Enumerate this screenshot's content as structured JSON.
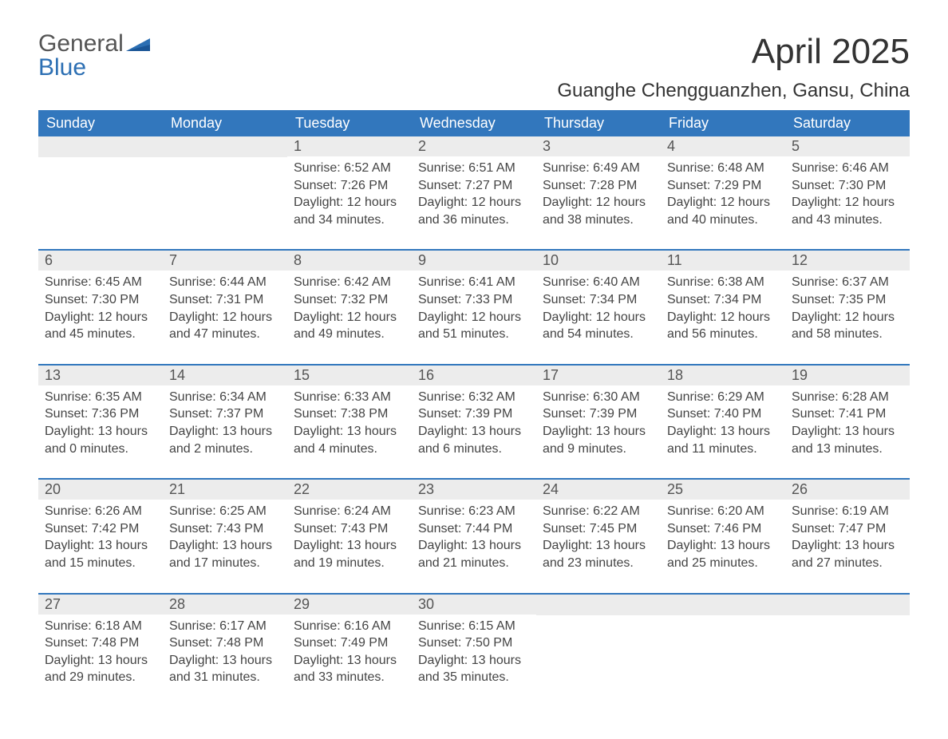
{
  "logo": {
    "part1": "General",
    "part2": "Blue"
  },
  "title": "April 2025",
  "location": "Guanghe Chengguanzhen, Gansu, China",
  "colors": {
    "header_bg": "#3277bd",
    "header_text": "#ffffff",
    "daynum_bg": "#ececec",
    "body_text": "#444444",
    "logo_blue": "#2c6fb3"
  },
  "day_headers": [
    "Sunday",
    "Monday",
    "Tuesday",
    "Wednesday",
    "Thursday",
    "Friday",
    "Saturday"
  ],
  "weeks": [
    [
      null,
      null,
      {
        "n": "1",
        "sunrise": "Sunrise: 6:52 AM",
        "sunset": "Sunset: 7:26 PM",
        "daylight": "Daylight: 12 hours and 34 minutes."
      },
      {
        "n": "2",
        "sunrise": "Sunrise: 6:51 AM",
        "sunset": "Sunset: 7:27 PM",
        "daylight": "Daylight: 12 hours and 36 minutes."
      },
      {
        "n": "3",
        "sunrise": "Sunrise: 6:49 AM",
        "sunset": "Sunset: 7:28 PM",
        "daylight": "Daylight: 12 hours and 38 minutes."
      },
      {
        "n": "4",
        "sunrise": "Sunrise: 6:48 AM",
        "sunset": "Sunset: 7:29 PM",
        "daylight": "Daylight: 12 hours and 40 minutes."
      },
      {
        "n": "5",
        "sunrise": "Sunrise: 6:46 AM",
        "sunset": "Sunset: 7:30 PM",
        "daylight": "Daylight: 12 hours and 43 minutes."
      }
    ],
    [
      {
        "n": "6",
        "sunrise": "Sunrise: 6:45 AM",
        "sunset": "Sunset: 7:30 PM",
        "daylight": "Daylight: 12 hours and 45 minutes."
      },
      {
        "n": "7",
        "sunrise": "Sunrise: 6:44 AM",
        "sunset": "Sunset: 7:31 PM",
        "daylight": "Daylight: 12 hours and 47 minutes."
      },
      {
        "n": "8",
        "sunrise": "Sunrise: 6:42 AM",
        "sunset": "Sunset: 7:32 PM",
        "daylight": "Daylight: 12 hours and 49 minutes."
      },
      {
        "n": "9",
        "sunrise": "Sunrise: 6:41 AM",
        "sunset": "Sunset: 7:33 PM",
        "daylight": "Daylight: 12 hours and 51 minutes."
      },
      {
        "n": "10",
        "sunrise": "Sunrise: 6:40 AM",
        "sunset": "Sunset: 7:34 PM",
        "daylight": "Daylight: 12 hours and 54 minutes."
      },
      {
        "n": "11",
        "sunrise": "Sunrise: 6:38 AM",
        "sunset": "Sunset: 7:34 PM",
        "daylight": "Daylight: 12 hours and 56 minutes."
      },
      {
        "n": "12",
        "sunrise": "Sunrise: 6:37 AM",
        "sunset": "Sunset: 7:35 PM",
        "daylight": "Daylight: 12 hours and 58 minutes."
      }
    ],
    [
      {
        "n": "13",
        "sunrise": "Sunrise: 6:35 AM",
        "sunset": "Sunset: 7:36 PM",
        "daylight": "Daylight: 13 hours and 0 minutes."
      },
      {
        "n": "14",
        "sunrise": "Sunrise: 6:34 AM",
        "sunset": "Sunset: 7:37 PM",
        "daylight": "Daylight: 13 hours and 2 minutes."
      },
      {
        "n": "15",
        "sunrise": "Sunrise: 6:33 AM",
        "sunset": "Sunset: 7:38 PM",
        "daylight": "Daylight: 13 hours and 4 minutes."
      },
      {
        "n": "16",
        "sunrise": "Sunrise: 6:32 AM",
        "sunset": "Sunset: 7:39 PM",
        "daylight": "Daylight: 13 hours and 6 minutes."
      },
      {
        "n": "17",
        "sunrise": "Sunrise: 6:30 AM",
        "sunset": "Sunset: 7:39 PM",
        "daylight": "Daylight: 13 hours and 9 minutes."
      },
      {
        "n": "18",
        "sunrise": "Sunrise: 6:29 AM",
        "sunset": "Sunset: 7:40 PM",
        "daylight": "Daylight: 13 hours and 11 minutes."
      },
      {
        "n": "19",
        "sunrise": "Sunrise: 6:28 AM",
        "sunset": "Sunset: 7:41 PM",
        "daylight": "Daylight: 13 hours and 13 minutes."
      }
    ],
    [
      {
        "n": "20",
        "sunrise": "Sunrise: 6:26 AM",
        "sunset": "Sunset: 7:42 PM",
        "daylight": "Daylight: 13 hours and 15 minutes."
      },
      {
        "n": "21",
        "sunrise": "Sunrise: 6:25 AM",
        "sunset": "Sunset: 7:43 PM",
        "daylight": "Daylight: 13 hours and 17 minutes."
      },
      {
        "n": "22",
        "sunrise": "Sunrise: 6:24 AM",
        "sunset": "Sunset: 7:43 PM",
        "daylight": "Daylight: 13 hours and 19 minutes."
      },
      {
        "n": "23",
        "sunrise": "Sunrise: 6:23 AM",
        "sunset": "Sunset: 7:44 PM",
        "daylight": "Daylight: 13 hours and 21 minutes."
      },
      {
        "n": "24",
        "sunrise": "Sunrise: 6:22 AM",
        "sunset": "Sunset: 7:45 PM",
        "daylight": "Daylight: 13 hours and 23 minutes."
      },
      {
        "n": "25",
        "sunrise": "Sunrise: 6:20 AM",
        "sunset": "Sunset: 7:46 PM",
        "daylight": "Daylight: 13 hours and 25 minutes."
      },
      {
        "n": "26",
        "sunrise": "Sunrise: 6:19 AM",
        "sunset": "Sunset: 7:47 PM",
        "daylight": "Daylight: 13 hours and 27 minutes."
      }
    ],
    [
      {
        "n": "27",
        "sunrise": "Sunrise: 6:18 AM",
        "sunset": "Sunset: 7:48 PM",
        "daylight": "Daylight: 13 hours and 29 minutes."
      },
      {
        "n": "28",
        "sunrise": "Sunrise: 6:17 AM",
        "sunset": "Sunset: 7:48 PM",
        "daylight": "Daylight: 13 hours and 31 minutes."
      },
      {
        "n": "29",
        "sunrise": "Sunrise: 6:16 AM",
        "sunset": "Sunset: 7:49 PM",
        "daylight": "Daylight: 13 hours and 33 minutes."
      },
      {
        "n": "30",
        "sunrise": "Sunrise: 6:15 AM",
        "sunset": "Sunset: 7:50 PM",
        "daylight": "Daylight: 13 hours and 35 minutes."
      },
      null,
      null,
      null
    ]
  ]
}
